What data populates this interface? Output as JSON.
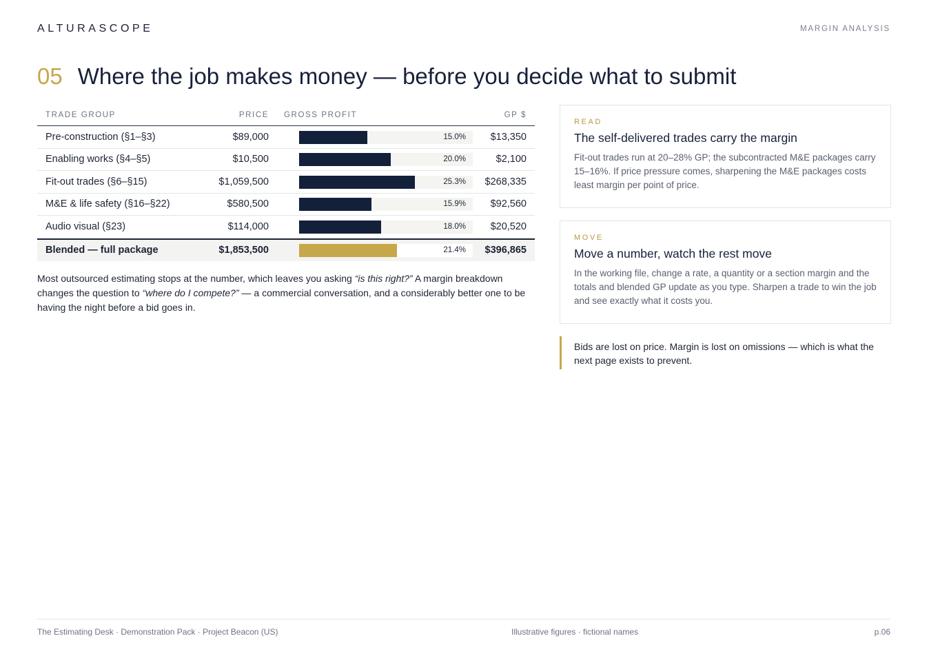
{
  "header": {
    "brand": "ALTURASCOPE",
    "section": "MARGIN ANALYSIS"
  },
  "heading": {
    "number": "05",
    "title": "Where the job makes money — before you decide what to submit"
  },
  "table": {
    "columns": {
      "name": "TRADE GROUP",
      "price": "PRICE",
      "bar": "GROSS PROFIT",
      "gp": "GP $"
    },
    "rows": [
      {
        "name": "Pre-construction (§1–§3)",
        "price": "$89,000",
        "gp_pct": "15.0%",
        "gp_pct_value": 15.0,
        "gp": "$13,350"
      },
      {
        "name": "Enabling works (§4–§5)",
        "price": "$10,500",
        "gp_pct": "20.0%",
        "gp_pct_value": 20.0,
        "gp": "$2,100"
      },
      {
        "name": "Fit-out trades (§6–§15)",
        "price": "$1,059,500",
        "gp_pct": "25.3%",
        "gp_pct_value": 25.3,
        "gp": "$268,335"
      },
      {
        "name": "M&E & life safety (§16–§22)",
        "price": "$580,500",
        "gp_pct": "15.9%",
        "gp_pct_value": 15.9,
        "gp": "$92,560"
      },
      {
        "name": "Audio visual (§23)",
        "price": "$114,000",
        "gp_pct": "18.0%",
        "gp_pct_value": 18.0,
        "gp": "$20,520"
      }
    ],
    "blended": {
      "name": "Blended — full package",
      "price": "$1,853,500",
      "gp_pct": "21.4%",
      "gp_pct_value": 21.4,
      "gp": "$396,865"
    },
    "bar_scale_max": 38
  },
  "body": {
    "part1": "Most outsourced estimating stops at the number, which leaves you asking ",
    "quote1": "“is this right?”",
    "part2": " A margin breakdown changes the question to ",
    "quote2": "“where do I compete?”",
    "part3": " — a commercial conversation, and a considerably better one to be having the night before a bid goes in."
  },
  "cards": {
    "read": {
      "kicker": "READ",
      "title": "The self-delivered trades carry the margin",
      "body": "Fit-out trades run at 20–28% GP; the subcontracted M&E packages carry 15–16%. If price pressure comes, sharpening the M&E packages costs least margin per point of price."
    },
    "move": {
      "kicker": "MOVE",
      "title": "Move a number, watch the rest move",
      "body": "In the working file, change a rate, a quantity or a section margin and the totals and blended GP update as you type. Sharpen a trade to win the job and see exactly what it costs you."
    }
  },
  "quote": "Bids are lost on price. Margin is lost on omissions — which is what the next page exists to prevent.",
  "footer": {
    "left": "The Estimating Desk · Demonstration Pack · Project Beacon (US)",
    "mid": "Illustrative figures · fictional names",
    "right": "p.06"
  },
  "colors": {
    "bar": "#13203a",
    "blended_bar": "#c6a74a",
    "accent": "#c6a74a"
  }
}
